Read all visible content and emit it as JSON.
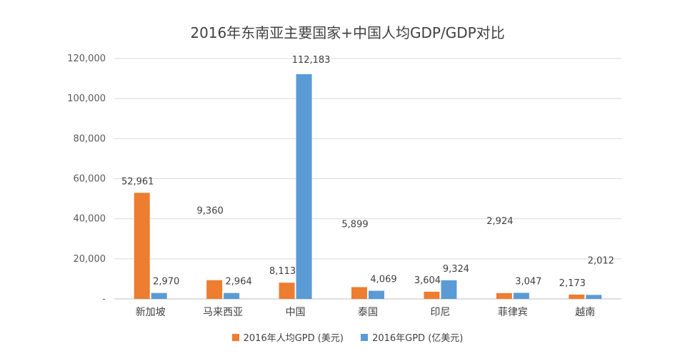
{
  "chart_data": {
    "type": "bar",
    "title": "2016年东南亚主要国家+中国人均GDP/GDP对比",
    "categories": [
      "新加坡",
      "马来西亚",
      "中国",
      "泰国",
      "印尼",
      "菲律宾",
      "越南"
    ],
    "series": [
      {
        "name": "2016年人均GPD (美元)",
        "color": "#ED7D31",
        "values": [
          52961,
          9360,
          8113,
          5899,
          3604,
          2924,
          2173
        ],
        "labels": [
          "52,961",
          "9,360",
          "8,113",
          "5,899",
          "3,604",
          "2,924",
          "2,173"
        ]
      },
      {
        "name": "2016年GPD (亿美元)",
        "color": "#5B9BD5",
        "values": [
          2970,
          2964,
          112183,
          4069,
          9324,
          3047,
          2012
        ],
        "labels": [
          "2,970",
          "2,964",
          "112,183",
          "4,069",
          "9,324",
          "3,047",
          "2,012"
        ]
      }
    ],
    "ylim": [
      0,
      120000
    ],
    "yticks": [
      0,
      20000,
      40000,
      60000,
      80000,
      100000,
      120000
    ],
    "ytick_labels": [
      "-",
      "20,000",
      "40,000",
      "60,000",
      "80,000",
      "100,000",
      "120,000"
    ],
    "grid": true,
    "legend": "bottom"
  }
}
